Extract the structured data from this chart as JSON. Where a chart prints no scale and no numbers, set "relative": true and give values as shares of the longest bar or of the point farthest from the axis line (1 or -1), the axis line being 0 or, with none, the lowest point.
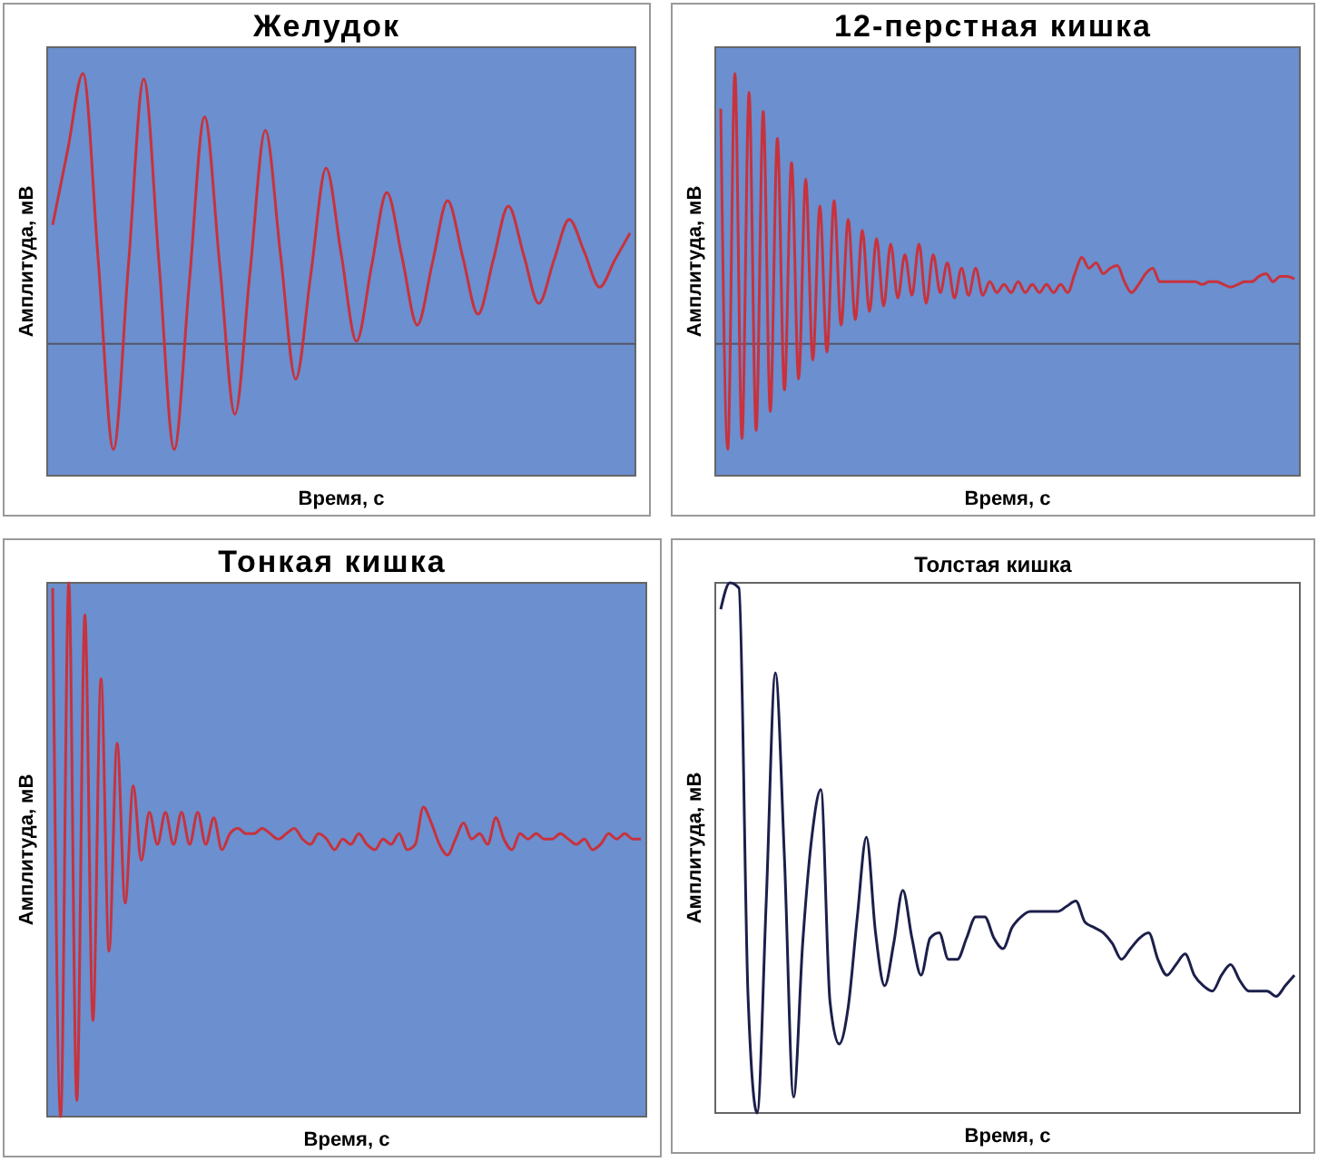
{
  "chart_data": [
    {
      "type": "line",
      "title": "Желудок",
      "xlabel": "Время, с",
      "ylabel": "Амплитуда, мВ",
      "relative": true,
      "color": "#c8323c",
      "categories": [
        null,
        null,
        null,
        null,
        null,
        null,
        null,
        null,
        null,
        null,
        null,
        null,
        null,
        null,
        null,
        null,
        null,
        null,
        null,
        null,
        null,
        null,
        null,
        null,
        null,
        null,
        null,
        null,
        null,
        null,
        null,
        null,
        null,
        null,
        null,
        null,
        null,
        null,
        null
      ],
      "values": [
        0.44,
        0.72,
        1.0,
        0.31,
        -0.39,
        0.3,
        0.98,
        0.3,
        -0.39,
        0.23,
        0.84,
        0.29,
        -0.26,
        0.27,
        0.79,
        0.33,
        -0.13,
        0.26,
        0.65,
        0.33,
        0.01,
        0.29,
        0.56,
        0.32,
        0.07,
        0.3,
        0.53,
        0.32,
        0.11,
        0.31,
        0.51,
        0.33,
        0.15,
        0.31,
        0.46,
        0.34,
        0.21,
        0.31,
        0.41
      ]
    },
    {
      "type": "line",
      "title": "12-перстная кишка",
      "xlabel": "Время, с",
      "ylabel": "Амплитуда, мВ",
      "relative": true,
      "color": "#c8323c",
      "categories": [
        null,
        null,
        null,
        null,
        null,
        null,
        null,
        null,
        null,
        null,
        null,
        null,
        null,
        null,
        null,
        null,
        null,
        null,
        null,
        null,
        null,
        null,
        null,
        null,
        null,
        null,
        null,
        null,
        null,
        null,
        null,
        null,
        null,
        null,
        null,
        null,
        null,
        null,
        null,
        null,
        null,
        null,
        null,
        null,
        null,
        null,
        null,
        null,
        null,
        null,
        null,
        null,
        null,
        null,
        null,
        null,
        null,
        null,
        null,
        null,
        null,
        null,
        null,
        null,
        null,
        null,
        null,
        null,
        null,
        null,
        null,
        null,
        null,
        null,
        null,
        null,
        null,
        null,
        null,
        null,
        null,
        null
      ],
      "values": [
        0.87,
        -0.39,
        1.0,
        -0.35,
        0.93,
        -0.32,
        0.86,
        -0.25,
        0.76,
        -0.17,
        0.67,
        -0.13,
        0.61,
        -0.06,
        0.51,
        -0.03,
        0.53,
        0.07,
        0.46,
        0.09,
        0.42,
        0.12,
        0.39,
        0.14,
        0.37,
        0.17,
        0.33,
        0.18,
        0.37,
        0.15,
        0.33,
        0.19,
        0.3,
        0.17,
        0.28,
        0.18,
        0.28,
        0.18,
        0.23,
        0.19,
        0.22,
        0.19,
        0.23,
        0.19,
        0.22,
        0.19,
        0.22,
        0.19,
        0.22,
        0.19,
        0.26,
        0.32,
        0.28,
        0.3,
        0.26,
        0.28,
        0.29,
        0.23,
        0.19,
        0.22,
        0.26,
        0.28,
        0.23,
        0.23,
        0.23,
        0.23,
        0.23,
        0.23,
        0.22,
        0.23,
        0.23,
        0.22,
        0.21,
        0.22,
        0.23,
        0.23,
        0.25,
        0.26,
        0.23,
        0.25,
        0.25,
        0.24
      ]
    },
    {
      "type": "line",
      "title": "Тонкая кишка",
      "xlabel": "Время, с",
      "ylabel": "Амплитуда, мВ",
      "relative": true,
      "color": "#c8323c",
      "categories": [
        null,
        null,
        null,
        null,
        null,
        null,
        null,
        null,
        null,
        null,
        null,
        null,
        null,
        null,
        null,
        null,
        null,
        null,
        null,
        null,
        null,
        null,
        null,
        null,
        null,
        null,
        null,
        null,
        null,
        null,
        null,
        null,
        null,
        null,
        null,
        null,
        null,
        null,
        null,
        null,
        null,
        null,
        null,
        null,
        null,
        null,
        null,
        null,
        null,
        null,
        null,
        null,
        null,
        null,
        null,
        null,
        null,
        null,
        null,
        null,
        null,
        null,
        null,
        null,
        null,
        null,
        null,
        null,
        null,
        null,
        null,
        null,
        null,
        null
      ],
      "values": [
        0.99,
        0,
        1.0,
        0.03,
        0.94,
        0.18,
        0.82,
        0.31,
        0.7,
        0.4,
        0.62,
        0.48,
        0.57,
        0.51,
        0.57,
        0.51,
        0.57,
        0.51,
        0.57,
        0.51,
        0.56,
        0.5,
        0.53,
        0.54,
        0.53,
        0.53,
        0.54,
        0.53,
        0.52,
        0.53,
        0.54,
        0.52,
        0.51,
        0.53,
        0.52,
        0.5,
        0.52,
        0.51,
        0.53,
        0.51,
        0.5,
        0.52,
        0.51,
        0.53,
        0.5,
        0.51,
        0.58,
        0.55,
        0.51,
        0.49,
        0.52,
        0.55,
        0.52,
        0.53,
        0.51,
        0.56,
        0.52,
        0.5,
        0.53,
        0.52,
        0.53,
        0.52,
        0.52,
        0.53,
        0.52,
        0.51,
        0.52,
        0.5,
        0.51,
        0.53,
        0.52,
        0.53,
        0.52,
        0.52
      ]
    },
    {
      "type": "line",
      "title": "Толстая кишка",
      "xlabel": "Время, с",
      "ylabel": "Амплитуда, мВ",
      "relative": true,
      "color": "#1c1f4a",
      "categories": [
        null,
        null,
        null,
        null,
        null,
        null,
        null,
        null,
        null,
        null,
        null,
        null,
        null,
        null,
        null,
        null,
        null,
        null,
        null,
        null,
        null,
        null,
        null,
        null,
        null,
        null,
        null,
        null,
        null,
        null,
        null,
        null,
        null,
        null,
        null,
        null,
        null,
        null,
        null,
        null,
        null,
        null,
        null,
        null,
        null,
        null,
        null,
        null,
        null,
        null,
        null,
        null,
        null,
        null,
        null,
        null,
        null,
        null,
        null,
        null,
        null,
        null,
        null,
        null
      ],
      "values": [
        0.95,
        1.0,
        0.99,
        0.22,
        0,
        0.4,
        0.83,
        0.48,
        0.03,
        0.32,
        0.52,
        0.61,
        0.21,
        0.13,
        0.2,
        0.37,
        0.52,
        0.34,
        0.24,
        0.32,
        0.42,
        0.33,
        0.26,
        0.33,
        0.34,
        0.29,
        0.29,
        0.33,
        0.37,
        0.37,
        0.33,
        0.31,
        0.35,
        0.37,
        0.38,
        0.38,
        0.38,
        0.38,
        0.39,
        0.4,
        0.36,
        0.35,
        0.34,
        0.32,
        0.29,
        0.31,
        0.33,
        0.34,
        0.29,
        0.26,
        0.28,
        0.3,
        0.26,
        0.24,
        0.23,
        0.26,
        0.28,
        0.25,
        0.23,
        0.23,
        0.23,
        0.22,
        0.24,
        0.26
      ]
    }
  ]
}
